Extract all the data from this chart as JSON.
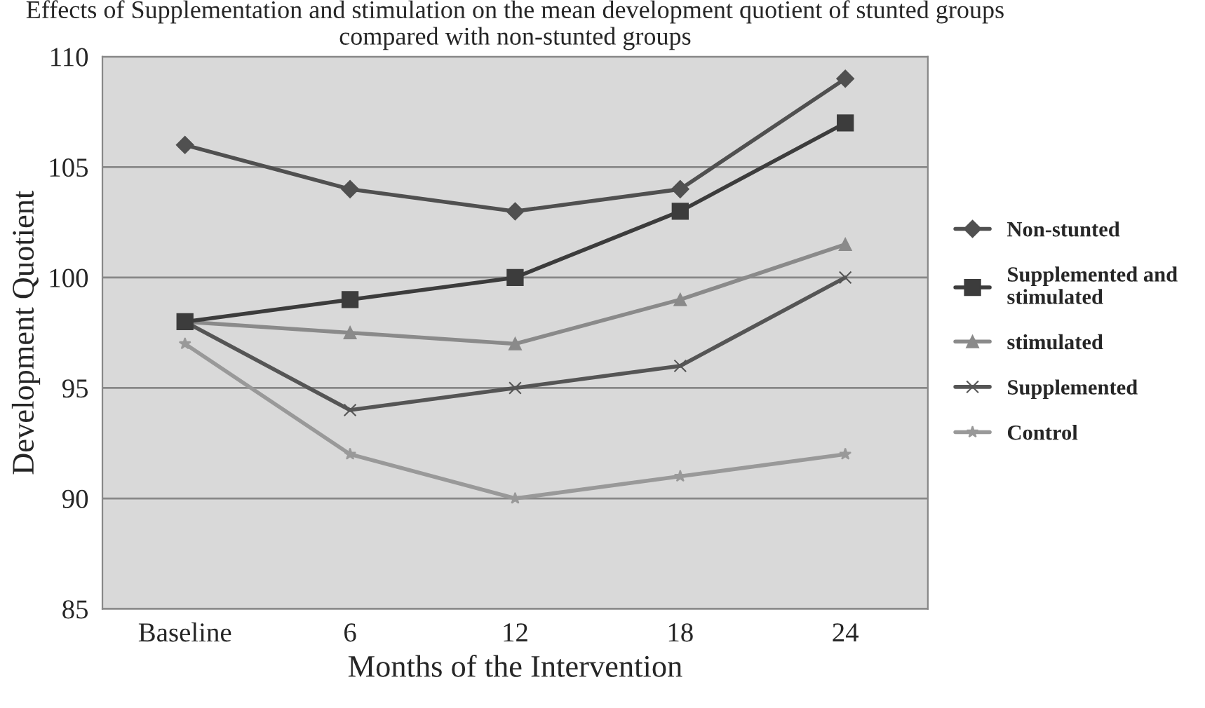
{
  "chart_data": {
    "type": "line",
    "title": "Effects of Supplementation and stimulation on the mean development quotient of stunted groups compared with non-stunted groups",
    "xlabel": "Months of the Intervention",
    "ylabel": "Development Quotient",
    "categories": [
      "Baseline",
      "6",
      "12",
      "18",
      "24"
    ],
    "series": [
      {
        "name": "Non-stunted",
        "color": "#505050",
        "marker": "diamond",
        "values": [
          106,
          104,
          103,
          104,
          109
        ]
      },
      {
        "name": "Supplemented and\nstimulated",
        "color": "#3c3c3c",
        "marker": "square",
        "values": [
          98,
          99,
          100,
          103,
          107
        ]
      },
      {
        "name": "stimulated",
        "color": "#8a8a8a",
        "marker": "triangle",
        "values": [
          98,
          97.5,
          97,
          99,
          101.5
        ]
      },
      {
        "name": "Supplemented",
        "color": "#555555",
        "marker": "cross",
        "values": [
          98,
          94,
          95,
          96,
          100
        ]
      },
      {
        "name": "Control",
        "color": "#999999",
        "marker": "star",
        "values": [
          97,
          92,
          90,
          91,
          92
        ]
      }
    ],
    "ylim": [
      85,
      110
    ],
    "yticks": [
      85,
      90,
      95,
      100,
      105,
      110
    ],
    "grid": "y",
    "legend": "right",
    "line_style": "solid"
  }
}
